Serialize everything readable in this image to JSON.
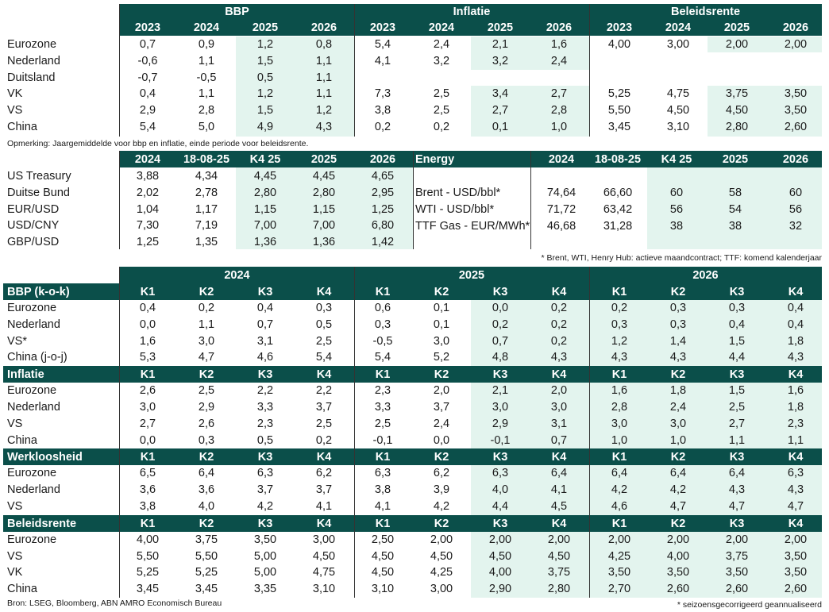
{
  "colors": {
    "header_band": "#0b4f4a",
    "highlight": "#e3f4ee",
    "text": "#1a1a1a",
    "header_text": "#ffffff"
  },
  "top": {
    "groups": [
      "BBP",
      "Inflatie",
      "Beleidsrente"
    ],
    "years": [
      "2023",
      "2024",
      "2025",
      "2026"
    ],
    "rows": [
      {
        "label": "Eurozone",
        "bbp": [
          "0,7",
          "0,9",
          "1,2",
          "0,8"
        ],
        "inflatie": [
          "5,4",
          "2,4",
          "2,1",
          "1,6"
        ],
        "rente": [
          "4,00",
          "3,00",
          "2,00",
          "2,00"
        ]
      },
      {
        "label": "Nederland",
        "bbp": [
          "-0,6",
          "1,1",
          "1,5",
          "1,1"
        ],
        "inflatie": [
          "4,1",
          "3,2",
          "3,2",
          "2,4"
        ],
        "rente": [
          "",
          "",
          "",
          ""
        ]
      },
      {
        "label": "Duitsland",
        "bbp": [
          "-0,7",
          "-0,5",
          "0,5",
          "1,1"
        ],
        "inflatie": [
          "",
          "",
          "",
          ""
        ],
        "rente": [
          "",
          "",
          "",
          ""
        ]
      },
      {
        "label": "VK",
        "bbp": [
          "0,4",
          "1,1",
          "1,2",
          "1,1"
        ],
        "inflatie": [
          "7,3",
          "2,5",
          "3,4",
          "2,7"
        ],
        "rente": [
          "5,25",
          "4,75",
          "3,75",
          "3,50"
        ]
      },
      {
        "label": "VS",
        "bbp": [
          "2,9",
          "2,8",
          "1,5",
          "1,2"
        ],
        "inflatie": [
          "3,8",
          "2,5",
          "2,7",
          "2,8"
        ],
        "rente": [
          "5,50",
          "4,50",
          "4,50",
          "3,50"
        ]
      },
      {
        "label": "China",
        "bbp": [
          "5,4",
          "5,0",
          "4,9",
          "4,3"
        ],
        "inflatie": [
          "0,2",
          "0,2",
          "0,1",
          "1,0"
        ],
        "rente": [
          "3,45",
          "3,10",
          "2,80",
          "2,60"
        ]
      }
    ],
    "note": "Opmerking: Jaargemiddelde voor bbp en inflatie, einde periode voor beleidsrente."
  },
  "markets": {
    "headers": [
      "2024",
      "18-08-25",
      "K4 25",
      "2025",
      "2026"
    ],
    "rows": [
      {
        "label": "US Treasury",
        "values": [
          "3,88",
          "4,34",
          "4,45",
          "4,45",
          "4,65"
        ]
      },
      {
        "label": "Duitse Bund",
        "values": [
          "2,02",
          "2,78",
          "2,80",
          "2,80",
          "2,95"
        ]
      },
      {
        "label": "EUR/USD",
        "values": [
          "1,04",
          "1,17",
          "1,15",
          "1,15",
          "1,25"
        ]
      },
      {
        "label": "USD/CNY",
        "values": [
          "7,30",
          "7,19",
          "7,00",
          "7,00",
          "6,80"
        ]
      },
      {
        "label": "GBP/USD",
        "values": [
          "1,25",
          "1,35",
          "1,36",
          "1,36",
          "1,42"
        ]
      }
    ]
  },
  "energy": {
    "title": "Energy",
    "headers": [
      "2024",
      "18-08-25",
      "K4 25",
      "2025",
      "2026"
    ],
    "rows": [
      {
        "label": "Brent - USD/bbl*",
        "values": [
          "74,64",
          "66,60",
          "60",
          "58",
          "60"
        ]
      },
      {
        "label": "WTI - USD/bbl*",
        "values": [
          "71,72",
          "63,42",
          "56",
          "54",
          "56"
        ]
      },
      {
        "label": "TTF Gas - EUR/MWh*",
        "values": [
          "46,68",
          "31,28",
          "38",
          "38",
          "32"
        ]
      }
    ],
    "note": "* Brent, WTI, Henry Hub: actieve maandcontract; TTF: komend kalenderjaar"
  },
  "quarterly": {
    "years": [
      "2024",
      "2025",
      "2026"
    ],
    "quarters": [
      "K1",
      "K2",
      "K3",
      "K4"
    ],
    "sections": [
      {
        "title": "BBP (k-o-k)",
        "rows": [
          {
            "label": "Eurozone",
            "values": [
              "0,4",
              "0,2",
              "0,4",
              "0,3",
              "0,6",
              "0,1",
              "0,0",
              "0,2",
              "0,2",
              "0,3",
              "0,3",
              "0,4"
            ]
          },
          {
            "label": "Nederland",
            "values": [
              "0,0",
              "1,1",
              "0,7",
              "0,5",
              "0,3",
              "0,1",
              "0,2",
              "0,2",
              "0,3",
              "0,3",
              "0,4",
              "0,4"
            ]
          },
          {
            "label": "VS*",
            "values": [
              "1,6",
              "3,0",
              "3,1",
              "2,5",
              "-0,5",
              "3,0",
              "0,7",
              "0,2",
              "1,2",
              "1,4",
              "1,5",
              "1,8"
            ]
          },
          {
            "label": "China (j-o-j)",
            "values": [
              "5,3",
              "4,7",
              "4,6",
              "5,4",
              "5,4",
              "5,2",
              "4,8",
              "4,3",
              "4,3",
              "4,3",
              "4,4",
              "4,3"
            ]
          }
        ]
      },
      {
        "title": "Inflatie",
        "rows": [
          {
            "label": "Eurozone",
            "values": [
              "2,6",
              "2,5",
              "2,2",
              "2,2",
              "2,3",
              "2,0",
              "2,1",
              "2,0",
              "1,6",
              "1,8",
              "1,5",
              "1,6"
            ]
          },
          {
            "label": "Nederland",
            "values": [
              "3,0",
              "2,9",
              "3,3",
              "3,7",
              "3,3",
              "3,7",
              "3,0",
              "3,0",
              "2,8",
              "2,4",
              "2,5",
              "1,8"
            ]
          },
          {
            "label": "VS",
            "values": [
              "2,7",
              "2,6",
              "2,3",
              "2,5",
              "2,5",
              "2,4",
              "2,9",
              "3,1",
              "3,0",
              "3,0",
              "2,7",
              "2,3"
            ]
          },
          {
            "label": "China",
            "values": [
              "0,0",
              "0,3",
              "0,5",
              "0,2",
              "-0,1",
              "0,0",
              "-0,1",
              "0,7",
              "1,0",
              "1,0",
              "1,1",
              "1,1"
            ]
          }
        ]
      },
      {
        "title": "Werkloosheid",
        "rows": [
          {
            "label": "Eurozone",
            "values": [
              "6,5",
              "6,4",
              "6,3",
              "6,2",
              "6,3",
              "6,2",
              "6,3",
              "6,4",
              "6,4",
              "6,4",
              "6,4",
              "6,3"
            ]
          },
          {
            "label": "Nederland",
            "values": [
              "3,6",
              "3,6",
              "3,7",
              "3,7",
              "3,8",
              "3,9",
              "4,0",
              "4,1",
              "4,2",
              "4,2",
              "4,3",
              "4,3"
            ]
          },
          {
            "label": "VS",
            "values": [
              "3,8",
              "4,0",
              "4,2",
              "4,1",
              "4,1",
              "4,2",
              "4,4",
              "4,5",
              "4,6",
              "4,7",
              "4,7",
              "4,7"
            ]
          }
        ]
      },
      {
        "title": "Beleidsrente",
        "rows": [
          {
            "label": "Eurozone",
            "values": [
              "4,00",
              "3,75",
              "3,50",
              "3,00",
              "2,50",
              "2,00",
              "2,00",
              "2,00",
              "2,00",
              "2,00",
              "2,00",
              "2,00"
            ]
          },
          {
            "label": "VS",
            "values": [
              "5,50",
              "5,50",
              "5,00",
              "4,50",
              "4,50",
              "4,50",
              "4,50",
              "4,50",
              "4,25",
              "4,00",
              "3,75",
              "3,50"
            ]
          },
          {
            "label": "VK",
            "values": [
              "5,25",
              "5,25",
              "5,00",
              "4,75",
              "4,50",
              "4,25",
              "4,00",
              "3,75",
              "3,50",
              "3,50",
              "3,50",
              "3,50"
            ]
          },
          {
            "label": "China",
            "values": [
              "3,45",
              "3,45",
              "3,35",
              "3,10",
              "3,10",
              "3,00",
              "2,90",
              "2,80",
              "2,70",
              "2,60",
              "2,60",
              "2,60"
            ]
          }
        ]
      }
    ]
  },
  "footer": {
    "source": "Bron: LSEG, Bloomberg, ABN AMRO Economisch Bureau",
    "note": "* seizoensgecorrigeerd geannualiseerd"
  }
}
